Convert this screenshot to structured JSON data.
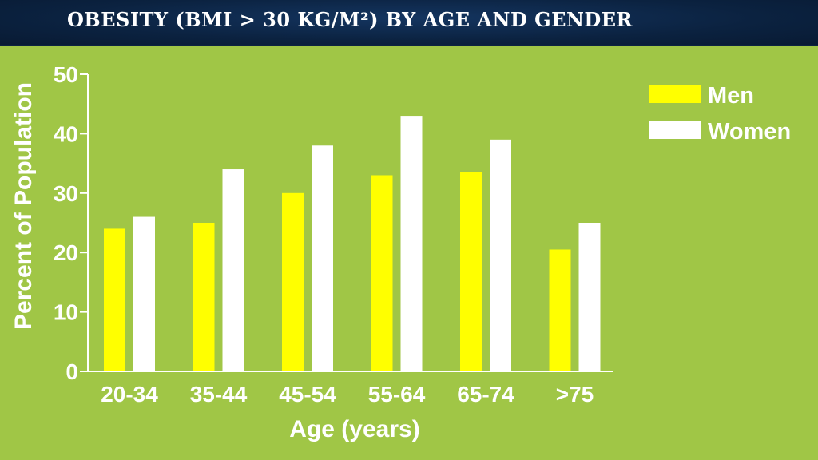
{
  "slide": {
    "title": "OBESITY (BMI > 30 KG/M²) BY AGE  AND GENDER"
  },
  "colors": {
    "background": "#a0c646",
    "men": "#ffff00",
    "women": "#ffffff",
    "title_bar": "#0b2240"
  },
  "chart_data": {
    "type": "bar",
    "title": "",
    "xlabel": "Age (years)",
    "ylabel": "Percent of Population",
    "ylim": [
      0,
      50
    ],
    "yticks": [
      0,
      10,
      20,
      30,
      40,
      50
    ],
    "categories": [
      "20-34",
      "35-44",
      "45-54",
      "55-64",
      "65-74",
      ">75"
    ],
    "series": [
      {
        "name": "Men",
        "color": "#ffff00",
        "values": [
          24,
          25,
          30,
          33,
          33.5,
          20.5
        ]
      },
      {
        "name": "Women",
        "color": "#ffffff",
        "values": [
          26,
          34,
          38,
          43,
          39,
          25
        ]
      }
    ],
    "legend": "top-right",
    "grid": false
  }
}
